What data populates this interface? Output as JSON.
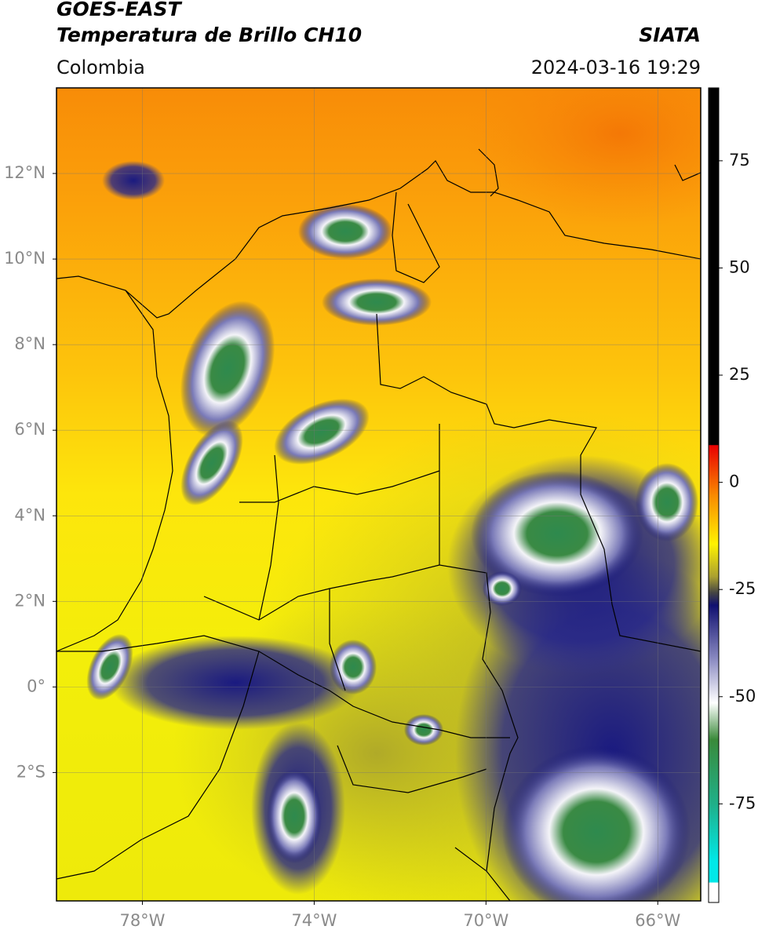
{
  "chart_data": {
    "type": "map",
    "title": "GOES-EAST",
    "subtitle": "Temperatura de Brillo CH10",
    "source": "SIATA",
    "region": "Colombia",
    "datetime": "2024-03-16 19:29",
    "xlim": [
      -80,
      -65
    ],
    "ylim": [
      -5,
      14
    ],
    "xticks": [
      {
        "value": -78,
        "label": "78°W"
      },
      {
        "value": -74,
        "label": "74°W"
      },
      {
        "value": -70,
        "label": "70°W"
      },
      {
        "value": -66,
        "label": "66°W"
      }
    ],
    "yticks": [
      {
        "value": 12,
        "label": "12°N"
      },
      {
        "value": 10,
        "label": "10°N"
      },
      {
        "value": 8,
        "label": "8°N"
      },
      {
        "value": 6,
        "label": "6°N"
      },
      {
        "value": 4,
        "label": "4°N"
      },
      {
        "value": 2,
        "label": "2°N"
      },
      {
        "value": 0,
        "label": "0°"
      },
      {
        "value": -2,
        "label": "2°S"
      }
    ],
    "colorbar": {
      "lim": [
        -98,
        92
      ],
      "ticks": [
        75,
        50,
        25,
        0,
        -25,
        -50,
        -75
      ]
    },
    "grid": true
  }
}
